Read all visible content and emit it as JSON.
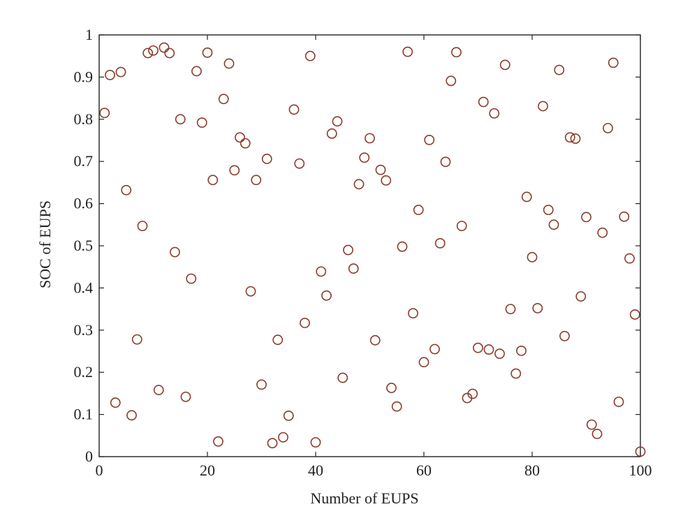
{
  "chart_data": {
    "type": "scatter",
    "xlabel": "Number of EUPS",
    "ylabel": "SOC of EUPS",
    "xlim": [
      0,
      100
    ],
    "ylim": [
      0,
      1
    ],
    "x_ticks": [
      0,
      20,
      40,
      60,
      80,
      100
    ],
    "y_ticks": [
      0,
      0.1,
      0.2,
      0.3,
      0.4,
      0.5,
      0.6,
      0.7,
      0.8,
      0.9,
      1
    ],
    "x_tick_labels": [
      "0",
      "20",
      "40",
      "60",
      "80",
      "100"
    ],
    "y_tick_labels": [
      "0",
      "0.1",
      "0.2",
      "0.3",
      "0.4",
      "0.5",
      "0.6",
      "0.7",
      "0.8",
      "0.9",
      "1"
    ],
    "grid": false,
    "legend": "none",
    "marker": "open-circle",
    "marker_color": "#8b3a2a",
    "series": [
      {
        "x": [
          1,
          2,
          3,
          4,
          5,
          6,
          7,
          8,
          9,
          10,
          11,
          12,
          13,
          14,
          15,
          16,
          17,
          18,
          19,
          20,
          21,
          22,
          23,
          24,
          25,
          26,
          27,
          28,
          29,
          30,
          31,
          32,
          33,
          34,
          35,
          36,
          37,
          38,
          39,
          40,
          41,
          42,
          43,
          44,
          45,
          46,
          47,
          48,
          49,
          50,
          51,
          52,
          53,
          54,
          55,
          56,
          57,
          58,
          59,
          60,
          61,
          62,
          63,
          64,
          65,
          66,
          67,
          68,
          69,
          70,
          71,
          72,
          73,
          74,
          75,
          76,
          77,
          78,
          79,
          80,
          81,
          82,
          83,
          84,
          85,
          86,
          87,
          88,
          89,
          90,
          91,
          92,
          93,
          94,
          95,
          96,
          97,
          98,
          99,
          100
        ],
        "y": [
          0.815,
          0.905,
          0.128,
          0.912,
          0.632,
          0.098,
          0.278,
          0.547,
          0.957,
          0.963,
          0.158,
          0.97,
          0.957,
          0.485,
          0.8,
          0.142,
          0.422,
          0.914,
          0.792,
          0.958,
          0.656,
          0.036,
          0.848,
          0.932,
          0.679,
          0.757,
          0.743,
          0.392,
          0.656,
          0.171,
          0.706,
          0.032,
          0.277,
          0.046,
          0.097,
          0.823,
          0.695,
          0.317,
          0.95,
          0.034,
          0.439,
          0.382,
          0.766,
          0.795,
          0.187,
          0.49,
          0.446,
          0.646,
          0.709,
          0.755,
          0.276,
          0.68,
          0.655,
          0.163,
          0.119,
          0.498,
          0.96,
          0.34,
          0.585,
          0.224,
          0.751,
          0.255,
          0.506,
          0.699,
          0.891,
          0.959,
          0.547,
          0.139,
          0.149,
          0.258,
          0.841,
          0.254,
          0.814,
          0.244,
          0.929,
          0.35,
          0.197,
          0.251,
          0.616,
          0.473,
          0.352,
          0.831,
          0.585,
          0.55,
          0.917,
          0.286,
          0.757,
          0.754,
          0.38,
          0.568,
          0.076,
          0.054,
          0.531,
          0.779,
          0.934,
          0.13,
          0.569,
          0.47,
          0.337,
          0.012
        ]
      }
    ]
  }
}
